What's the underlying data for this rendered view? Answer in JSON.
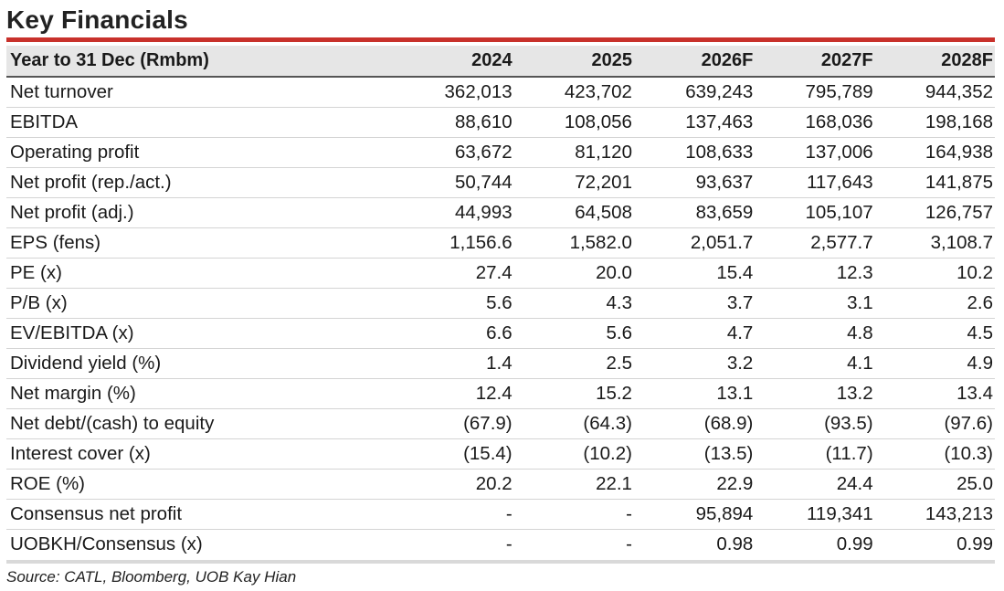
{
  "title": "Key Financials",
  "table": {
    "headers": [
      "Year to 31 Dec (Rmbm)",
      "2024",
      "2025",
      "2026F",
      "2027F",
      "2028F"
    ],
    "rows": [
      [
        "Net turnover",
        "362,013",
        "423,702",
        "639,243",
        "795,789",
        "944,352"
      ],
      [
        "EBITDA",
        "88,610",
        "108,056",
        "137,463",
        "168,036",
        "198,168"
      ],
      [
        "Operating profit",
        "63,672",
        "81,120",
        "108,633",
        "137,006",
        "164,938"
      ],
      [
        "Net profit (rep./act.)",
        "50,744",
        "72,201",
        "93,637",
        "117,643",
        "141,875"
      ],
      [
        "Net profit (adj.)",
        "44,993",
        "64,508",
        "83,659",
        "105,107",
        "126,757"
      ],
      [
        "EPS (fens)",
        "1,156.6",
        "1,582.0",
        "2,051.7",
        "2,577.7",
        "3,108.7"
      ],
      [
        "PE (x)",
        "27.4",
        "20.0",
        "15.4",
        "12.3",
        "10.2"
      ],
      [
        "P/B (x)",
        "5.6",
        "4.3",
        "3.7",
        "3.1",
        "2.6"
      ],
      [
        "EV/EBITDA (x)",
        "6.6",
        "5.6",
        "4.7",
        "4.8",
        "4.5"
      ],
      [
        "Dividend yield (%)",
        "1.4",
        "2.5",
        "3.2",
        "4.1",
        "4.9"
      ],
      [
        "Net margin (%)",
        "12.4",
        "15.2",
        "13.1",
        "13.2",
        "13.4"
      ],
      [
        "Net debt/(cash) to equity",
        "(67.9)",
        "(64.3)",
        "(68.9)",
        "(93.5)",
        "(97.6)"
      ],
      [
        "Interest cover (x)",
        "(15.4)",
        "(10.2)",
        "(13.5)",
        "(11.7)",
        "(10.3)"
      ],
      [
        "ROE (%)",
        "20.2",
        "22.1",
        "22.9",
        "24.4",
        "25.0"
      ],
      [
        "Consensus net profit",
        "-",
        "-",
        "95,894",
        "119,341",
        "143,213"
      ],
      [
        "UOBKH/Consensus (x)",
        "-",
        "-",
        "0.98",
        "0.99",
        "0.99"
      ]
    ]
  },
  "source": "Source: CATL, Bloomberg, UOB Kay Hian",
  "colors": {
    "accent_rule": "#c8312b",
    "header_bg": "#e6e6e6"
  }
}
